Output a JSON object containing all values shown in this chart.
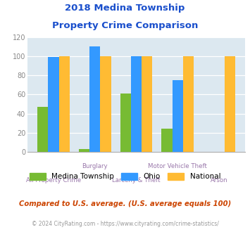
{
  "title_line1": "2018 Medina Township",
  "title_line2": "Property Crime Comparison",
  "categories": [
    "All Property Crime",
    "Burglary",
    "Larceny & Theft",
    "Motor Vehicle Theft",
    "Arson"
  ],
  "medina": [
    47,
    3,
    61,
    24,
    0
  ],
  "ohio": [
    99,
    110,
    100,
    75,
    0
  ],
  "national": [
    100,
    100,
    100,
    100,
    100
  ],
  "bar_color_medina": "#77bb33",
  "bar_color_ohio": "#3399ff",
  "bar_color_national": "#ffbb33",
  "ylim": [
    0,
    120
  ],
  "yticks": [
    0,
    20,
    40,
    60,
    80,
    100,
    120
  ],
  "background_color": "#dce8f0",
  "subtitle": "Compared to U.S. average. (U.S. average equals 100)",
  "footer": "© 2024 CityRating.com - https://www.cityrating.com/crime-statistics/",
  "legend_labels": [
    "Medina Township",
    "Ohio",
    "National"
  ],
  "title_color": "#1a4fcc",
  "subtitle_color": "#cc4400",
  "footer_color": "#999999",
  "xlabel_color": "#9977aa",
  "ytick_color": "#888888"
}
